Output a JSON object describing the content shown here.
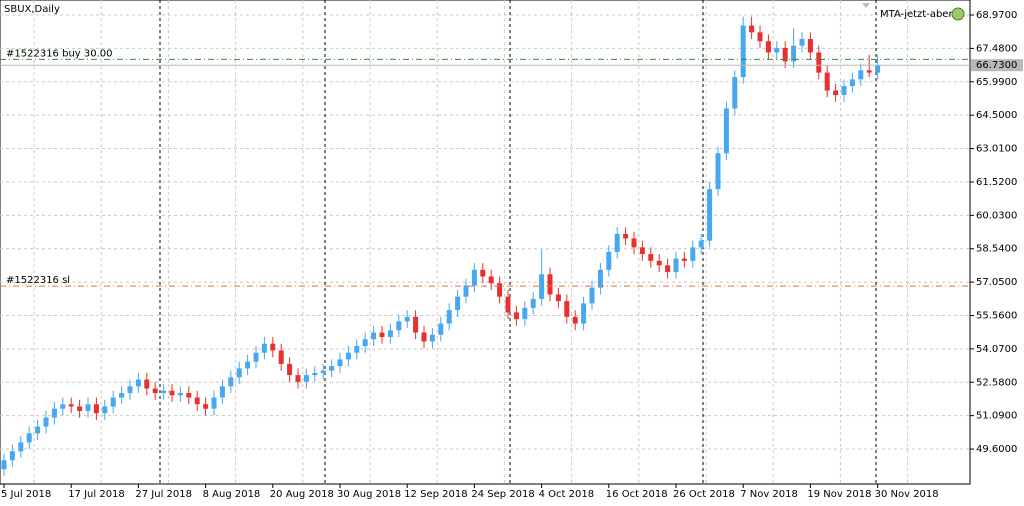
{
  "chart_data": {
    "type": "candlestick",
    "title": "SBUX,Daily",
    "indicator": "MTA-jetzt-aber",
    "categories": [
      "5 Jul 2018",
      null,
      null,
      null,
      null,
      null,
      null,
      null,
      "17 Jul 2018",
      null,
      null,
      null,
      null,
      null,
      null,
      null,
      "27 Jul 2018",
      null,
      null,
      null,
      null,
      null,
      null,
      null,
      "8 Aug 2018",
      null,
      null,
      null,
      null,
      null,
      null,
      null,
      "20 Aug 2018",
      null,
      null,
      null,
      null,
      null,
      null,
      null,
      "30 Aug 2018",
      null,
      null,
      null,
      null,
      null,
      null,
      null,
      "12 Sep 2018",
      null,
      null,
      null,
      null,
      null,
      null,
      null,
      "24 Sep 2018",
      null,
      null,
      null,
      null,
      null,
      null,
      null,
      "4 Oct 2018",
      null,
      null,
      null,
      null,
      null,
      null,
      null,
      "16 Oct 2018",
      null,
      null,
      null,
      null,
      null,
      null,
      null,
      "26 Oct 2018",
      null,
      null,
      null,
      null,
      null,
      null,
      null,
      "7 Nov 2018",
      null,
      null,
      null,
      null,
      null,
      null,
      null,
      "19 Nov 2018",
      null,
      null,
      null,
      null,
      null,
      null,
      null,
      "30 Nov 2018"
    ],
    "open": [
      48.7,
      49.1,
      49.5,
      49.9,
      50.3,
      50.6,
      51.0,
      51.4,
      51.6,
      51.5,
      51.3,
      51.6,
      51.2,
      51.5,
      51.9,
      52.1,
      52.4,
      52.7,
      52.3,
      52.1,
      52.2,
      52.0,
      52.1,
      51.9,
      51.6,
      51.4,
      51.9,
      52.4,
      52.8,
      53.2,
      53.5,
      53.9,
      54.3,
      54.0,
      53.4,
      52.9,
      52.6,
      52.9,
      53.0,
      53.1,
      53.3,
      53.6,
      53.9,
      54.2,
      54.5,
      54.8,
      54.6,
      54.9,
      55.3,
      55.5,
      54.8,
      54.4,
      54.7,
      55.2,
      55.8,
      56.4,
      56.9,
      57.6,
      57.3,
      57.0,
      56.4,
      55.7,
      55.4,
      55.9,
      56.3,
      57.4,
      56.5,
      56.2,
      55.5,
      55.2,
      56.1,
      56.8,
      57.6,
      58.4,
      59.2,
      59.0,
      58.6,
      58.3,
      58.0,
      57.8,
      57.5,
      58.1,
      58.0,
      58.6,
      58.9,
      61.2,
      62.8,
      64.8,
      66.2,
      68.5,
      68.2,
      67.8,
      67.3,
      67.5,
      66.9,
      67.6,
      67.9,
      67.3,
      66.4,
      65.6,
      65.4,
      65.8,
      66.1,
      66.5,
      66.4
    ],
    "high": [
      49.4,
      49.8,
      50.2,
      50.6,
      50.9,
      51.3,
      51.7,
      51.9,
      51.9,
      51.8,
      51.9,
      51.9,
      51.8,
      52.2,
      52.4,
      52.7,
      53.0,
      53.0,
      52.6,
      52.5,
      52.5,
      52.4,
      52.4,
      52.2,
      51.9,
      52.2,
      52.7,
      53.1,
      53.5,
      53.8,
      54.2,
      54.6,
      54.6,
      54.3,
      53.7,
      53.2,
      53.2,
      53.3,
      53.4,
      53.6,
      53.9,
      54.2,
      54.5,
      54.8,
      55.1,
      55.1,
      55.2,
      55.6,
      55.8,
      55.8,
      55.1,
      55.0,
      55.5,
      56.1,
      56.7,
      57.2,
      57.9,
      57.9,
      57.6,
      57.3,
      56.7,
      56.0,
      56.2,
      56.6,
      58.5,
      57.7,
      56.8,
      56.5,
      55.8,
      56.4,
      57.1,
      57.9,
      58.7,
      59.5,
      59.5,
      59.3,
      58.9,
      58.6,
      58.3,
      58.1,
      58.4,
      58.4,
      58.9,
      59.2,
      61.5,
      63.1,
      65.1,
      66.5,
      68.9,
      68.9,
      68.5,
      68.1,
      67.8,
      67.8,
      68.4,
      68.2,
      68.2,
      67.6,
      66.7,
      65.9,
      66.1,
      66.4,
      66.8,
      67.2,
      67.2
    ],
    "low": [
      48.4,
      48.8,
      49.2,
      49.6,
      50.0,
      50.3,
      50.7,
      51.1,
      51.2,
      51.0,
      51.0,
      50.9,
      50.9,
      51.2,
      51.6,
      51.8,
      52.1,
      52.0,
      51.8,
      51.8,
      51.7,
      51.7,
      51.6,
      51.3,
      51.1,
      51.1,
      51.6,
      52.1,
      52.5,
      52.9,
      53.2,
      53.6,
      53.7,
      53.1,
      52.6,
      52.3,
      52.3,
      52.6,
      52.7,
      52.8,
      53.0,
      53.3,
      53.6,
      53.9,
      54.2,
      54.3,
      54.3,
      54.6,
      55.0,
      54.5,
      54.1,
      54.1,
      54.4,
      54.9,
      55.5,
      56.1,
      56.6,
      57.0,
      56.7,
      56.1,
      55.4,
      55.1,
      55.1,
      55.6,
      56.0,
      56.2,
      55.9,
      55.2,
      54.9,
      54.9,
      55.8,
      56.5,
      57.3,
      58.1,
      58.7,
      58.3,
      58.0,
      57.7,
      57.5,
      57.2,
      57.2,
      57.7,
      57.7,
      58.3,
      58.6,
      60.9,
      62.5,
      64.5,
      65.9,
      67.9,
      67.5,
      67.0,
      67.0,
      66.6,
      66.6,
      67.3,
      67.0,
      66.1,
      65.3,
      65.1,
      65.1,
      65.5,
      65.8,
      66.2,
      66.1
    ],
    "close": [
      49.1,
      49.5,
      49.9,
      50.3,
      50.6,
      51.0,
      51.4,
      51.6,
      51.5,
      51.3,
      51.6,
      51.2,
      51.5,
      51.9,
      52.1,
      52.4,
      52.7,
      52.3,
      52.1,
      52.2,
      52.0,
      52.1,
      51.9,
      51.6,
      51.4,
      51.9,
      52.4,
      52.8,
      53.2,
      53.5,
      53.9,
      54.3,
      54.0,
      53.4,
      52.9,
      52.6,
      52.9,
      53.0,
      53.1,
      53.3,
      53.6,
      53.9,
      54.2,
      54.5,
      54.8,
      54.6,
      54.9,
      55.3,
      55.5,
      54.8,
      54.4,
      54.7,
      55.2,
      55.8,
      56.4,
      56.9,
      57.6,
      57.3,
      57.0,
      56.4,
      55.7,
      55.4,
      55.9,
      56.3,
      57.4,
      56.5,
      56.2,
      55.5,
      55.2,
      56.1,
      56.8,
      57.6,
      58.4,
      59.2,
      59.0,
      58.6,
      58.3,
      58.0,
      57.8,
      57.5,
      58.1,
      58.0,
      58.6,
      58.9,
      61.2,
      62.8,
      64.8,
      66.2,
      68.5,
      68.2,
      67.8,
      67.3,
      67.5,
      66.9,
      67.6,
      67.9,
      67.3,
      66.4,
      65.6,
      65.4,
      65.8,
      66.1,
      66.5,
      66.4,
      66.73
    ],
    "up_color": "#47a7ef",
    "down_color": "#e8302e",
    "ylim": [
      48.04,
      69.64
    ],
    "yticks": [
      {
        "value": 49.6,
        "label": "49.6000"
      },
      {
        "value": 51.09,
        "label": "51.0900"
      },
      {
        "value": 52.58,
        "label": "52.5800"
      },
      {
        "value": 54.07,
        "label": "54.0700"
      },
      {
        "value": 55.56,
        "label": "55.5600"
      },
      {
        "value": 57.05,
        "label": "57.0500"
      },
      {
        "value": 58.54,
        "label": "58.5400"
      },
      {
        "value": 60.03,
        "label": "60.0300"
      },
      {
        "value": 61.52,
        "label": "61.5200"
      },
      {
        "value": 63.01,
        "label": "63.0100"
      },
      {
        "value": 64.5,
        "label": "64.5000"
      },
      {
        "value": 65.99,
        "label": "65.9900"
      },
      {
        "value": 67.48,
        "label": "67.4800"
      },
      {
        "value": 68.97,
        "label": "68.9700"
      }
    ],
    "grid": true,
    "levels": [
      {
        "label": "#1522316 buy 30.00",
        "value": 66.99,
        "color": "#2f8f2f"
      },
      {
        "label": "#1522316 sl",
        "value": 56.87,
        "color": "#e8703a"
      }
    ],
    "bid": {
      "value": 66.73,
      "label": "66.7300",
      "color": "#b8b8b8"
    }
  }
}
